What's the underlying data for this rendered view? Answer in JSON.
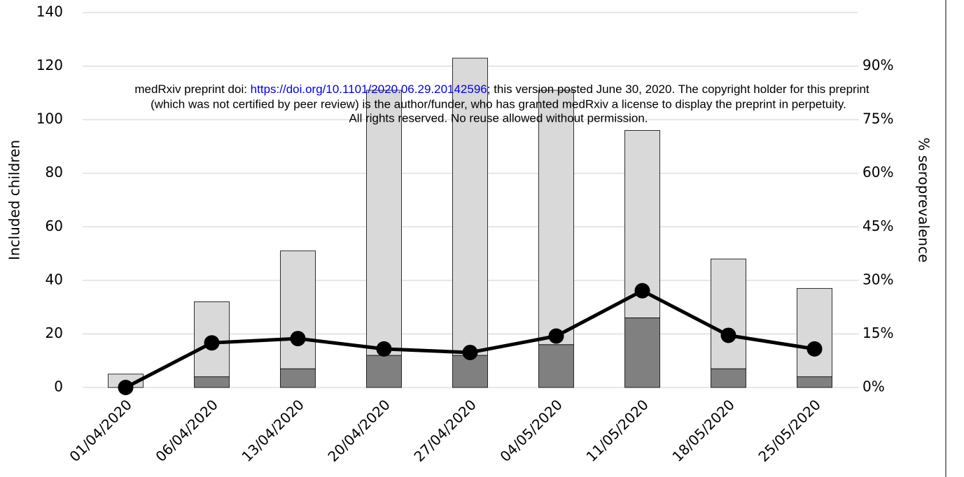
{
  "chart_data": {
    "type": "bar",
    "categories": [
      "01/04/2020",
      "06/04/2020",
      "13/04/2020",
      "20/04/2020",
      "27/04/2020",
      "04/05/2020",
      "11/05/2020",
      "18/05/2020",
      "25/05/2020"
    ],
    "series": [
      {
        "type": "bar",
        "color": "#808080",
        "values": [
          0,
          4,
          7,
          12,
          12,
          16,
          26,
          7,
          4
        ]
      },
      {
        "type": "bar",
        "color": "#d9d9d9",
        "values": [
          5,
          28,
          44,
          99,
          111,
          95,
          70,
          41,
          33
        ]
      },
      {
        "type": "line",
        "axis": "y2",
        "color": "#000000",
        "values": [
          0,
          12.5,
          13.7,
          10.8,
          9.8,
          14.4,
          27.1,
          14.6,
          10.8
        ]
      }
    ],
    "stacked": true,
    "ylabel": "Included children",
    "y2label": "% seroprevalence",
    "ylim": [
      0,
      140
    ],
    "yticks": [
      0,
      20,
      40,
      60,
      80,
      100,
      120,
      140
    ],
    "y2lim": [
      0,
      105
    ],
    "y2ticks": [
      {
        "value": 0,
        "label": "0%"
      },
      {
        "value": 15,
        "label": "15%"
      },
      {
        "value": 30,
        "label": "30%"
      },
      {
        "value": 45,
        "label": "45%"
      },
      {
        "value": 60,
        "label": "60%"
      },
      {
        "value": 75,
        "label": "75%"
      },
      {
        "value": 90,
        "label": "90%"
      }
    ],
    "grid": true,
    "annotations": [
      "medRxiv preprint doi: ",
      "https://doi.org/10.1101/2020.06.29.20142596",
      "; this version posted June 30, 2020. The copyright holder for this preprint",
      "(which was not certified by peer review) is the author/funder, who has granted medRxiv a license to display the preprint in perpetuity.",
      "All rights reserved. No reuse allowed without permission."
    ]
  }
}
